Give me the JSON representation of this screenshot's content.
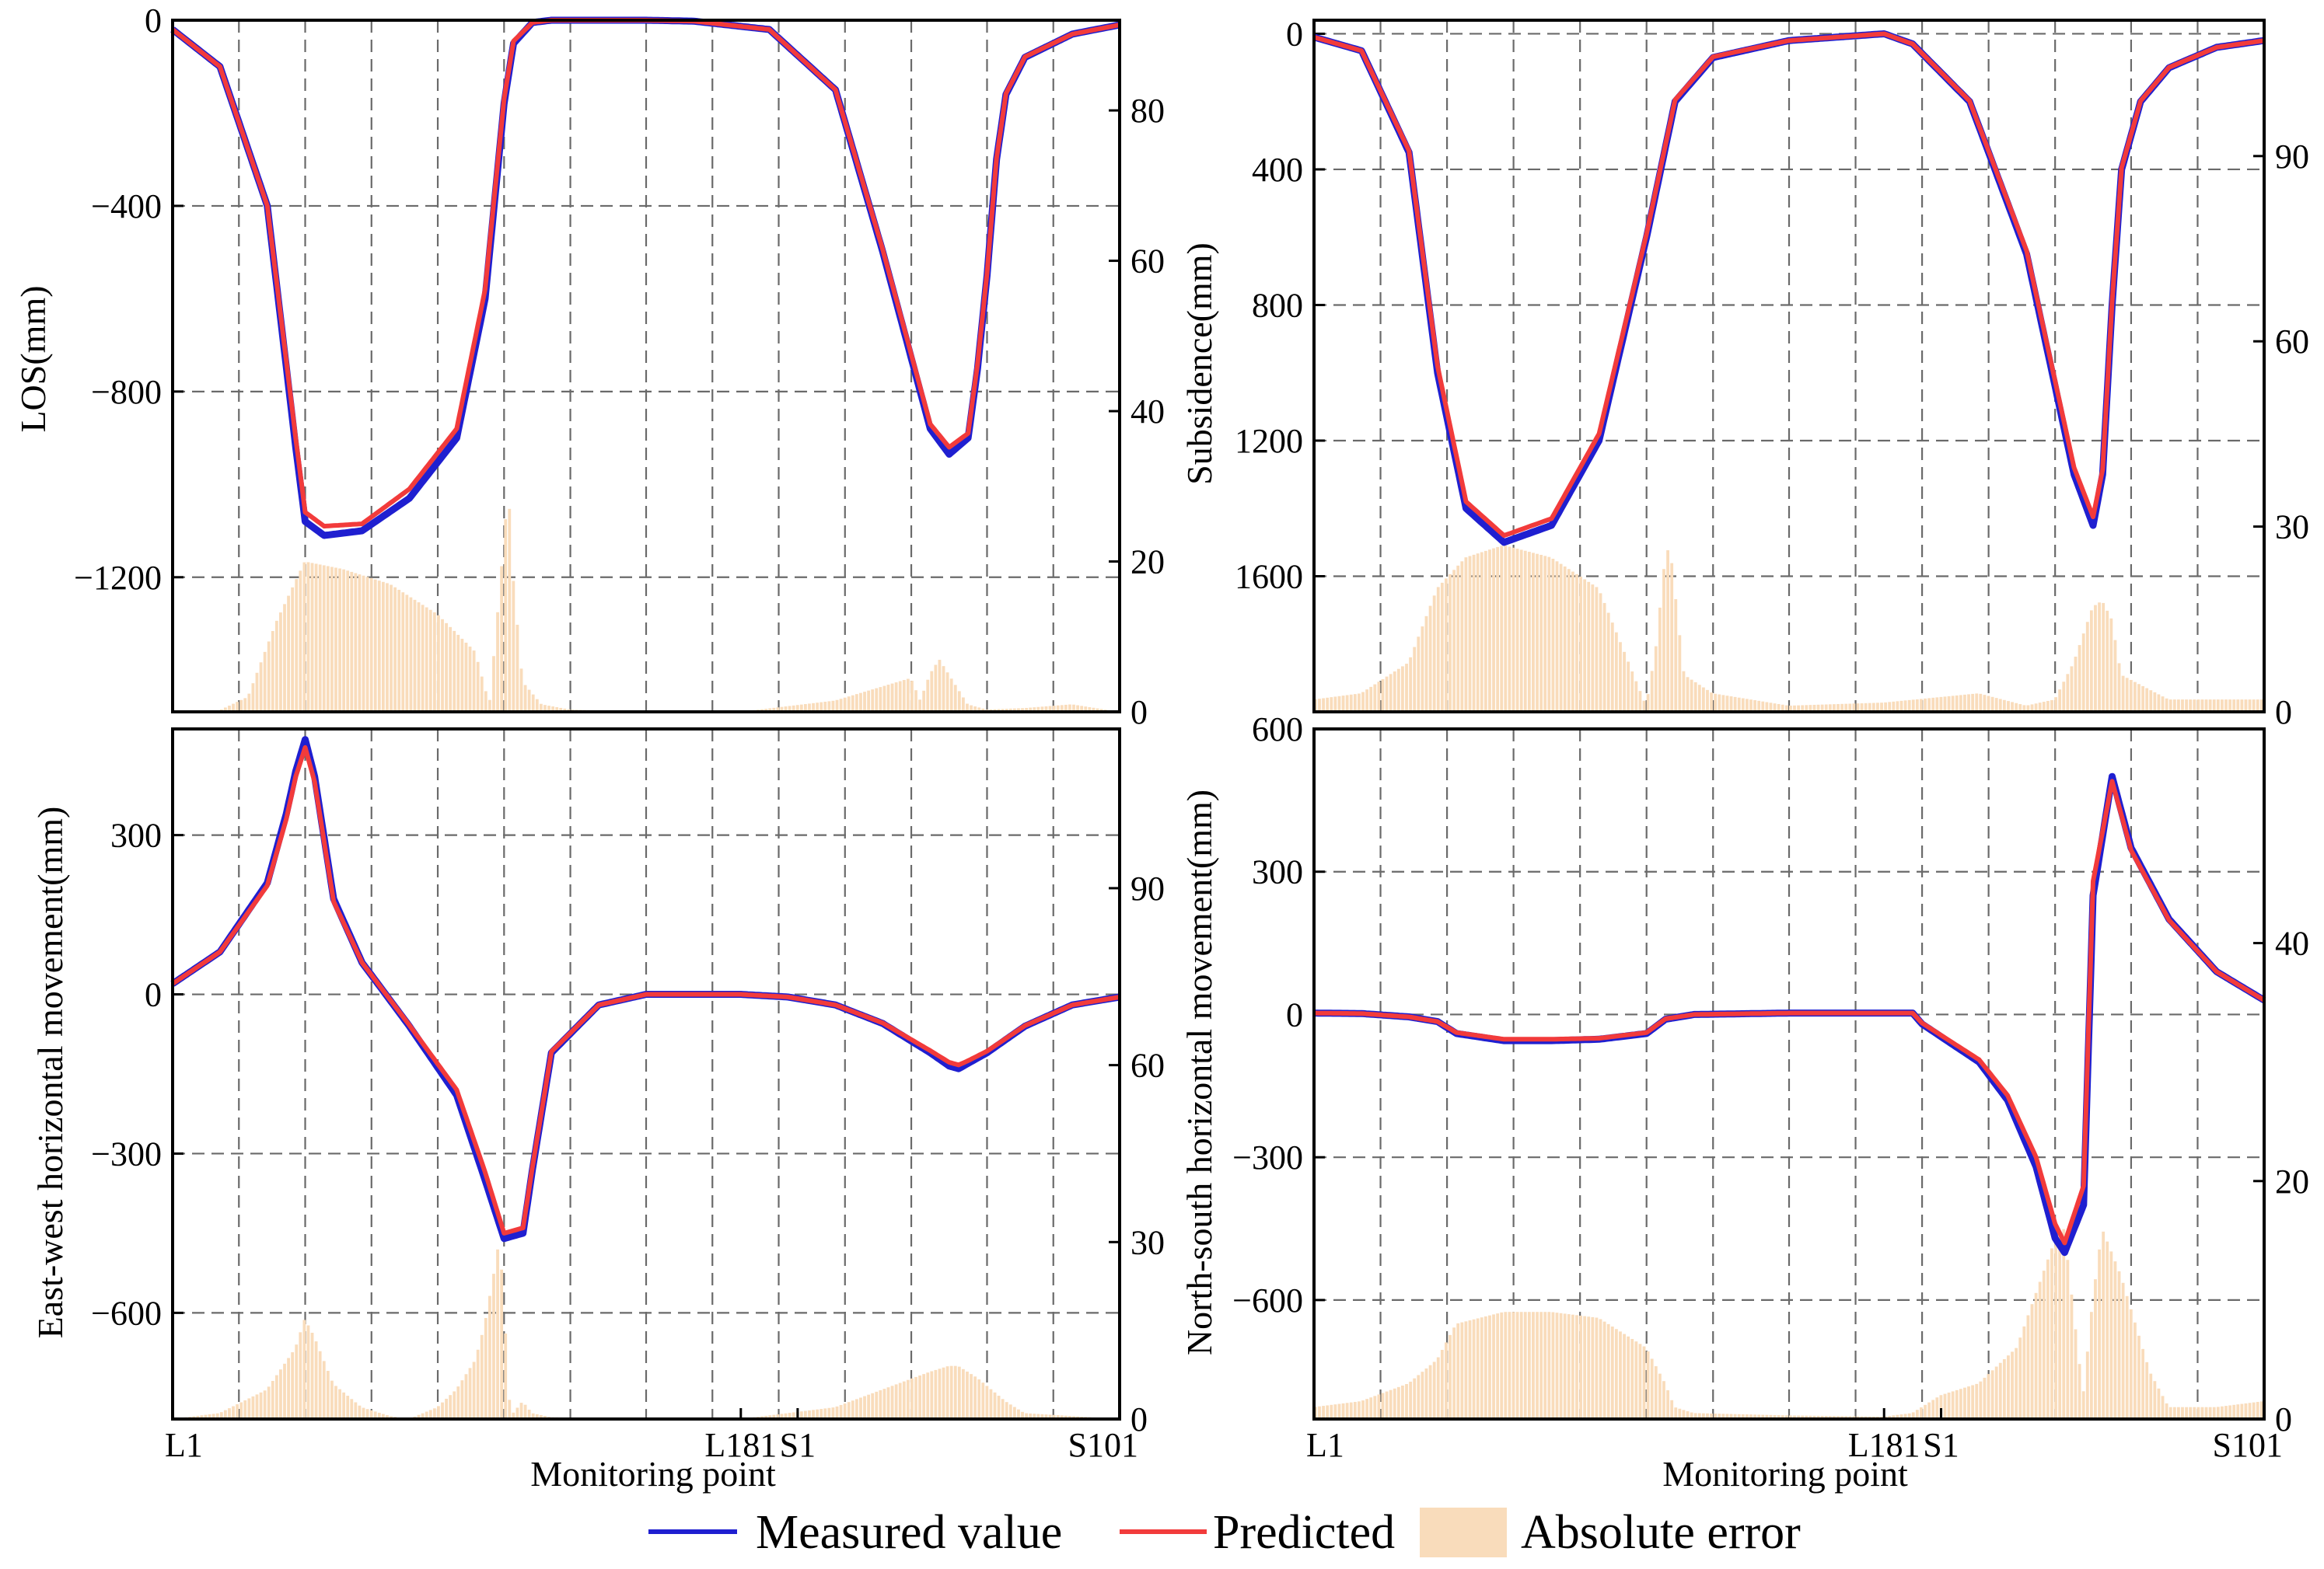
{
  "figure": {
    "legend": {
      "measured": {
        "label": "Measured value",
        "color": "#1f1fd0"
      },
      "predicted": {
        "label": "Predicted",
        "color": "#f23b3b"
      },
      "error": {
        "label": "Absolute error",
        "color": "#f9dcbb"
      }
    }
  },
  "chart_data": [
    {
      "id": "los",
      "type": "line",
      "ylabel": "LOS(mm)",
      "xlabel": "",
      "ylim": [
        -1490,
        0
      ],
      "y_ticks": [
        0,
        -400,
        -800,
        -1200
      ],
      "y2lim": [
        0,
        92
      ],
      "y2_ticks": [
        0,
        20,
        40,
        60,
        80
      ],
      "x_ticks": [],
      "series": [
        {
          "name": "Measured value",
          "x": [
            0,
            0.05,
            0.1,
            0.13,
            0.14,
            0.16,
            0.2,
            0.25,
            0.3,
            0.33,
            0.35,
            0.36,
            0.38,
            0.4,
            0.5,
            0.55,
            0.63,
            0.7,
            0.75,
            0.8,
            0.82,
            0.84,
            0.85,
            0.86,
            0.87,
            0.88,
            0.9,
            0.95,
            1
          ],
          "values": [
            -20,
            -100,
            -400,
            -920,
            -1080,
            -1110,
            -1100,
            -1030,
            -900,
            -600,
            -180,
            -50,
            -5,
            0,
            0,
            -2,
            -20,
            -150,
            -500,
            -880,
            -935,
            -900,
            -750,
            -550,
            -300,
            -160,
            -80,
            -30,
            -10
          ]
        },
        {
          "name": "Predicted",
          "x": [
            0,
            0.05,
            0.1,
            0.13,
            0.14,
            0.16,
            0.2,
            0.25,
            0.3,
            0.33,
            0.35,
            0.36,
            0.38,
            0.4,
            0.5,
            0.55,
            0.63,
            0.7,
            0.75,
            0.8,
            0.82,
            0.84,
            0.85,
            0.86,
            0.87,
            0.88,
            0.9,
            0.95,
            1
          ],
          "values": [
            -20,
            -100,
            -400,
            -900,
            -1060,
            -1090,
            -1085,
            -1010,
            -880,
            -580,
            -170,
            -45,
            -5,
            0,
            0,
            -2,
            -20,
            -150,
            -495,
            -870,
            -920,
            -890,
            -740,
            -545,
            -298,
            -158,
            -79,
            -30,
            -10
          ]
        },
        {
          "name": "Absolute error",
          "x": [
            0,
            0.05,
            0.08,
            0.11,
            0.14,
            0.18,
            0.23,
            0.28,
            0.32,
            0.335,
            0.345,
            0.355,
            0.36,
            0.37,
            0.39,
            0.42,
            0.5,
            0.6,
            0.7,
            0.78,
            0.79,
            0.8,
            0.81,
            0.82,
            0.84,
            0.86,
            0.9,
            0.95,
            1
          ],
          "values": [
            0,
            0.2,
            2,
            12,
            20,
            19,
            17,
            13,
            8,
            1,
            15,
            30,
            18,
            4,
            1,
            0.3,
            0,
            0,
            1.5,
            4.5,
            1.5,
            5,
            7,
            5,
            1,
            0.3,
            0.5,
            1,
            0
          ]
        }
      ]
    },
    {
      "id": "subsidence",
      "type": "line",
      "ylabel": "Subsidence(mm)",
      "xlabel": "",
      "ylim": [
        2000,
        -40
      ],
      "y_ticks": [
        0,
        400,
        800,
        1200,
        1600
      ],
      "y2lim": [
        0,
        112
      ],
      "y2_ticks": [
        0,
        30,
        60,
        90
      ],
      "x_ticks": [],
      "series": [
        {
          "name": "Measured value",
          "x": [
            0,
            0.05,
            0.1,
            0.13,
            0.16,
            0.2,
            0.25,
            0.3,
            0.35,
            0.38,
            0.42,
            0.5,
            0.55,
            0.6,
            0.63,
            0.69,
            0.75,
            0.8,
            0.82,
            0.83,
            0.84,
            0.85,
            0.87,
            0.9,
            0.95,
            1
          ],
          "values": [
            10,
            50,
            350,
            1000,
            1400,
            1500,
            1450,
            1200,
            600,
            200,
            70,
            20,
            10,
            0,
            30,
            200,
            650,
            1300,
            1450,
            1300,
            800,
            400,
            200,
            100,
            40,
            20
          ]
        },
        {
          "name": "Predicted",
          "x": [
            0,
            0.05,
            0.1,
            0.13,
            0.16,
            0.2,
            0.25,
            0.3,
            0.35,
            0.38,
            0.42,
            0.5,
            0.55,
            0.6,
            0.63,
            0.69,
            0.75,
            0.8,
            0.82,
            0.83,
            0.84,
            0.85,
            0.87,
            0.9,
            0.95,
            1
          ],
          "values": [
            10,
            50,
            345,
            980,
            1380,
            1480,
            1430,
            1180,
            590,
            195,
            68,
            20,
            10,
            0,
            30,
            198,
            640,
            1280,
            1425,
            1285,
            790,
            395,
            198,
            99,
            40,
            20
          ]
        },
        {
          "name": "Absolute error",
          "x": [
            0,
            0.05,
            0.1,
            0.13,
            0.16,
            0.2,
            0.25,
            0.3,
            0.35,
            0.36,
            0.37,
            0.375,
            0.38,
            0.39,
            0.42,
            0.5,
            0.6,
            0.7,
            0.75,
            0.78,
            0.8,
            0.82,
            0.83,
            0.84,
            0.85,
            0.9,
            1
          ],
          "values": [
            2,
            3,
            8,
            20,
            25,
            27,
            25,
            20,
            1,
            10,
            25,
            27,
            20,
            6,
            3,
            1,
            1.5,
            3,
            1,
            2,
            8,
            17,
            18,
            15,
            6,
            2,
            2
          ]
        }
      ]
    },
    {
      "id": "east-west",
      "type": "line",
      "ylabel": "East-west horizontal movement(mm)",
      "xlabel": "Monitoring point",
      "ylim": [
        -800,
        500
      ],
      "y_ticks": [
        300,
        0,
        -300,
        -600
      ],
      "y2lim": [
        0,
        117
      ],
      "y2_ticks": [
        0,
        30,
        60,
        90
      ],
      "x_ticks": [
        "L1",
        "L181",
        "S1",
        "S101"
      ],
      "series": [
        {
          "name": "Measured value",
          "x": [
            0,
            0.05,
            0.1,
            0.12,
            0.13,
            0.14,
            0.15,
            0.17,
            0.2,
            0.25,
            0.3,
            0.33,
            0.35,
            0.37,
            0.38,
            0.4,
            0.45,
            0.5,
            0.6,
            0.65,
            0.7,
            0.75,
            0.8,
            0.82,
            0.83,
            0.84,
            0.86,
            0.9,
            0.95,
            1
          ],
          "values": [
            20,
            80,
            210,
            340,
            420,
            480,
            410,
            180,
            60,
            -60,
            -190,
            -350,
            -460,
            -450,
            -330,
            -110,
            -20,
            0,
            0,
            -5,
            -20,
            -55,
            -110,
            -135,
            -140,
            -130,
            -110,
            -60,
            -20,
            -5
          ]
        },
        {
          "name": "Predicted",
          "x": [
            0,
            0.05,
            0.1,
            0.12,
            0.13,
            0.14,
            0.15,
            0.17,
            0.2,
            0.25,
            0.3,
            0.33,
            0.35,
            0.37,
            0.38,
            0.4,
            0.45,
            0.5,
            0.6,
            0.65,
            0.7,
            0.75,
            0.8,
            0.82,
            0.83,
            0.84,
            0.86,
            0.9,
            0.95,
            1
          ],
          "values": [
            20,
            80,
            205,
            330,
            410,
            465,
            400,
            175,
            60,
            -58,
            -180,
            -335,
            -450,
            -440,
            -325,
            -108,
            -20,
            0,
            0,
            -5,
            -20,
            -54,
            -106,
            -128,
            -133,
            -125,
            -107,
            -59,
            -20,
            -5
          ]
        },
        {
          "name": "Absolute error",
          "x": [
            0,
            0.05,
            0.1,
            0.13,
            0.14,
            0.15,
            0.17,
            0.2,
            0.23,
            0.25,
            0.28,
            0.3,
            0.32,
            0.33,
            0.34,
            0.345,
            0.35,
            0.355,
            0.36,
            0.37,
            0.38,
            0.4,
            0.5,
            0.6,
            0.7,
            0.75,
            0.8,
            0.82,
            0.83,
            0.85,
            0.88,
            0.9,
            1
          ],
          "values": [
            0,
            1,
            5,
            12,
            17,
            14,
            6,
            2,
            0.5,
            0,
            2,
            5,
            10,
            16,
            25,
            30,
            22,
            4,
            1,
            3,
            1,
            0.3,
            0,
            0,
            2,
            5,
            8,
            9,
            9,
            7,
            3,
            1,
            0
          ]
        }
      ]
    },
    {
      "id": "north-south",
      "type": "line",
      "ylabel": "North-south horizontal movement(mm)",
      "xlabel": "Monitoring point",
      "ylim": [
        -850,
        600
      ],
      "y_ticks": [
        600,
        300,
        0,
        -300,
        -600
      ],
      "y2lim": [
        0,
        58
      ],
      "y2_ticks": [
        0,
        20,
        40
      ],
      "x_ticks": [
        "L1",
        "L181",
        "S1",
        "S101"
      ],
      "series": [
        {
          "name": "Measured value",
          "x": [
            0,
            0.05,
            0.1,
            0.13,
            0.15,
            0.2,
            0.25,
            0.3,
            0.35,
            0.37,
            0.4,
            0.5,
            0.55,
            0.6,
            0.63,
            0.64,
            0.7,
            0.73,
            0.76,
            0.78,
            0.79,
            0.81,
            0.82,
            0.84,
            0.86,
            0.9,
            0.95,
            1
          ],
          "values": [
            3,
            2,
            -5,
            -15,
            -40,
            -55,
            -55,
            -52,
            -40,
            -10,
            0,
            3,
            3,
            3,
            3,
            -20,
            -100,
            -180,
            -320,
            -470,
            -500,
            -400,
            250,
            500,
            350,
            200,
            90,
            30
          ]
        },
        {
          "name": "Predicted",
          "x": [
            0,
            0.05,
            0.1,
            0.13,
            0.15,
            0.2,
            0.25,
            0.3,
            0.35,
            0.37,
            0.4,
            0.5,
            0.55,
            0.6,
            0.63,
            0.64,
            0.7,
            0.73,
            0.76,
            0.78,
            0.79,
            0.81,
            0.82,
            0.84,
            0.86,
            0.9,
            0.95,
            1
          ],
          "values": [
            3,
            2,
            -5,
            -15,
            -38,
            -52,
            -52,
            -50,
            -38,
            -9,
            0,
            3,
            3,
            3,
            3,
            -18,
            -95,
            -170,
            -300,
            -440,
            -480,
            -360,
            280,
            490,
            345,
            198,
            90,
            30
          ]
        },
        {
          "name": "Absolute error",
          "x": [
            0,
            0.05,
            0.1,
            0.13,
            0.15,
            0.2,
            0.25,
            0.3,
            0.35,
            0.37,
            0.38,
            0.4,
            0.5,
            0.6,
            0.63,
            0.66,
            0.7,
            0.74,
            0.78,
            0.79,
            0.81,
            0.82,
            0.83,
            0.85,
            0.88,
            0.9,
            0.95,
            1
          ],
          "values": [
            1,
            1.5,
            3,
            5,
            8,
            9,
            9,
            8.5,
            6,
            3,
            1,
            0.5,
            0.3,
            0.2,
            0.5,
            2,
            3,
            6,
            15,
            16,
            2,
            10,
            16,
            12,
            4,
            1,
            1,
            1.5
          ]
        }
      ]
    }
  ]
}
